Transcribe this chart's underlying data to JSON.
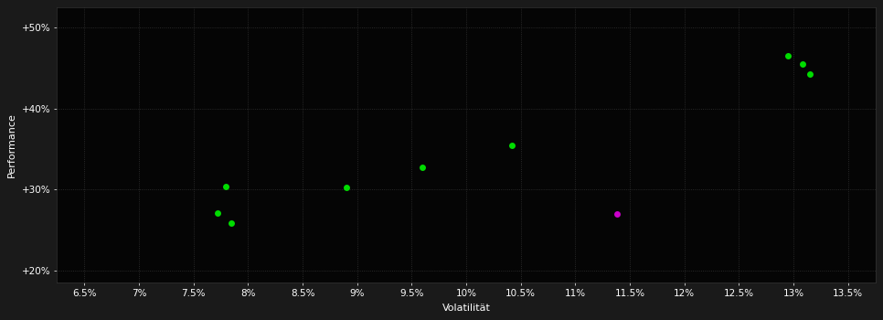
{
  "background_color": "#1a1a1a",
  "plot_bg_color": "#050505",
  "grid_color": "#333333",
  "text_color": "#ffffff",
  "xlabel": "Volatilität",
  "ylabel": "Performance",
  "xlim": [
    0.0625,
    0.1375
  ],
  "ylim": [
    0.185,
    0.525
  ],
  "xticks": [
    0.065,
    0.07,
    0.075,
    0.08,
    0.085,
    0.09,
    0.095,
    0.1,
    0.105,
    0.11,
    0.115,
    0.12,
    0.125,
    0.13,
    0.135
  ],
  "yticks": [
    0.2,
    0.3,
    0.4,
    0.5
  ],
  "ytick_labels": [
    "+20%",
    "+30%",
    "+40%",
    "+50%"
  ],
  "xtick_labels": [
    "6.5%",
    "7%",
    "7.5%",
    "8%",
    "8.5%",
    "9%",
    "9.5%",
    "10%",
    "10.5%",
    "11%",
    "11.5%",
    "12%",
    "12.5%",
    "13%",
    "13.5%"
  ],
  "green_points": [
    [
      0.078,
      0.304
    ],
    [
      0.0772,
      0.271
    ],
    [
      0.0785,
      0.259
    ],
    [
      0.089,
      0.303
    ],
    [
      0.096,
      0.328
    ],
    [
      0.1042,
      0.355
    ],
    [
      0.1295,
      0.466
    ],
    [
      0.1308,
      0.455
    ],
    [
      0.1315,
      0.443
    ]
  ],
  "magenta_points": [
    [
      0.1138,
      0.27
    ]
  ],
  "green_color": "#00dd00",
  "magenta_color": "#cc00cc",
  "marker_size": 5,
  "title_fontsize": 8,
  "axis_fontsize": 7.5,
  "label_fontsize": 8
}
